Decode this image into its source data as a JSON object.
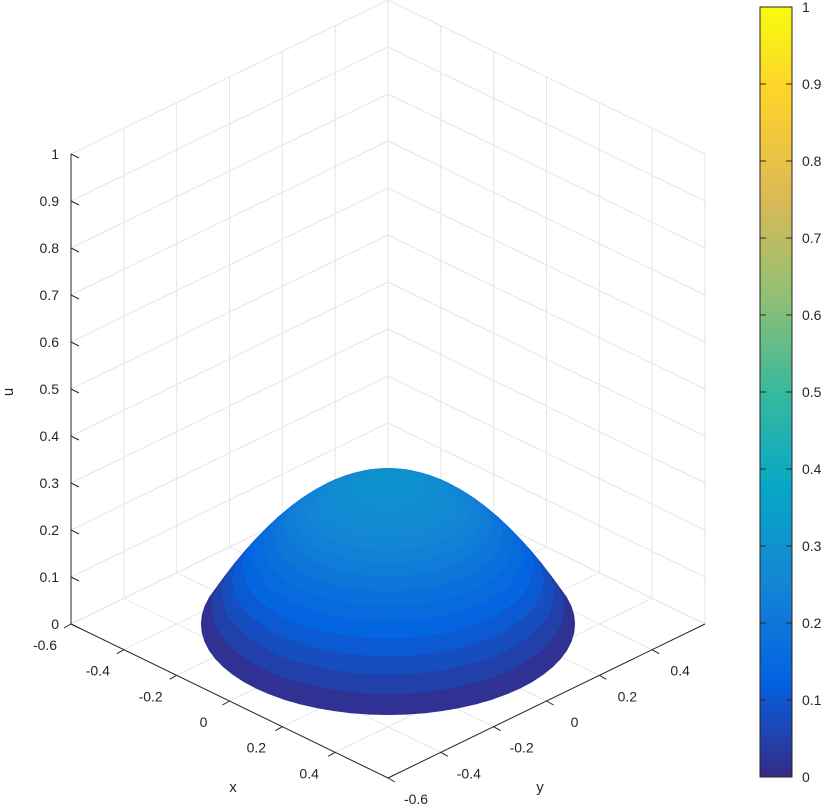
{
  "chart_data": {
    "type": "surface",
    "title": "",
    "xlabel": "x",
    "ylabel": "y",
    "zlabel": "u",
    "xlim": [
      -0.6,
      0.6
    ],
    "ylim": [
      -0.6,
      0.6
    ],
    "zlim": [
      0,
      1
    ],
    "x_ticks": [
      "-0.6",
      "-0.4",
      "-0.2",
      "0",
      "0.2",
      "0.4"
    ],
    "y_ticks": [
      "-0.6",
      "-0.4",
      "-0.2",
      "0",
      "0.2",
      "0.4"
    ],
    "z_ticks": [
      "0",
      "0.1",
      "0.2",
      "0.3",
      "0.4",
      "0.5",
      "0.6",
      "0.7",
      "0.8",
      "0.9",
      "1"
    ],
    "surface": {
      "function": "u = 0.3 * (1 - (x^2 + y^2) / 0.5^2)",
      "domain": "disk of radius 0.5 centered at origin",
      "peak_value": 0.3,
      "boundary_value": 0,
      "colormap": "parula"
    },
    "colorbar": {
      "limits": [
        0,
        1
      ],
      "ticks": [
        "0",
        "0.1",
        "0.2",
        "0.3",
        "0.4",
        "0.5",
        "0.6",
        "0.7",
        "0.8",
        "0.9",
        "1"
      ],
      "colors": [
        "#352a87",
        "#0363e1",
        "#1485d4",
        "#06a7c6",
        "#38b99e",
        "#92bf73",
        "#d9ba56",
        "#fcce2e",
        "#f9fb0e"
      ]
    },
    "grid": true
  }
}
